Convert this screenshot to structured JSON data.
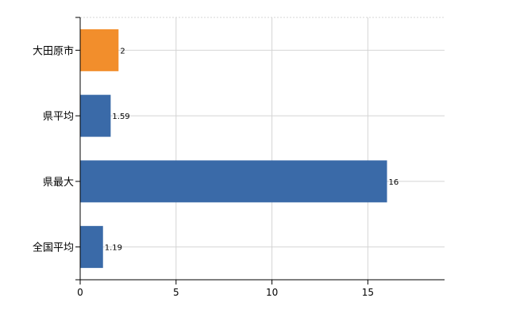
{
  "chart_data": {
    "type": "bar",
    "orientation": "horizontal",
    "categories": [
      "大田原市",
      "県平均",
      "県最大",
      "全国平均"
    ],
    "values": [
      2,
      1.59,
      16,
      1.19
    ],
    "data_labels": [
      "2",
      "1.59",
      "16",
      "1.19"
    ],
    "colors": [
      "#f28e2c",
      "#3a6aa8",
      "#3a6aa8",
      "#3a6aa8"
    ],
    "xlim": [
      0,
      19
    ],
    "xticks": [
      0,
      5,
      10,
      15
    ],
    "grid": true,
    "legend": "none"
  }
}
